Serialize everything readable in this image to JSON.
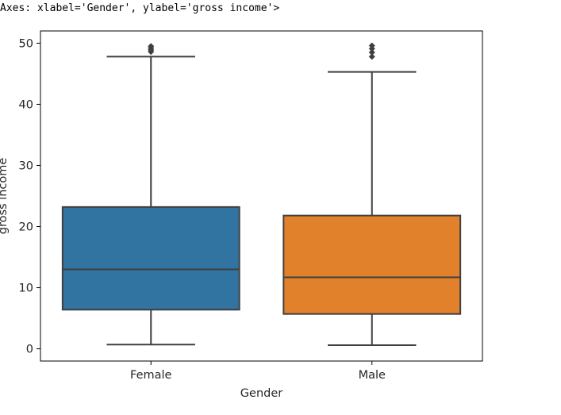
{
  "output_repr": "Axes: xlabel='Gender', ylabel='gross income'>",
  "chart_data": {
    "type": "box",
    "xlabel": "Gender",
    "ylabel": "gross income",
    "ylim": [
      -2,
      52
    ],
    "yticks": [
      0,
      10,
      20,
      30,
      40,
      50
    ],
    "grid": false,
    "legend": "none",
    "categories": [
      "Female",
      "Male"
    ],
    "boxes": [
      {
        "category": "Female",
        "color": "#3274a1",
        "whisker_low": 0.7,
        "q1": 6.4,
        "median": 13.0,
        "q3": 23.2,
        "whisker_high": 47.8,
        "outliers": [
          48.6,
          48.9,
          49.2,
          49.5
        ]
      },
      {
        "category": "Male",
        "color": "#e1812c",
        "whisker_low": 0.6,
        "q1": 5.7,
        "median": 11.7,
        "q3": 21.8,
        "whisker_high": 45.3,
        "outliers": [
          47.8,
          48.5,
          49.1,
          49.6
        ]
      }
    ],
    "line_color": "#3f3f3f"
  }
}
